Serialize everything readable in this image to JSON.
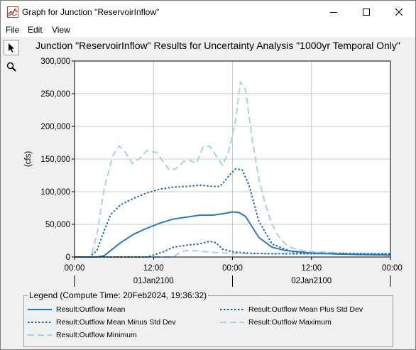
{
  "window": {
    "title": "Graph for Junction \"ReservoirInflow\""
  },
  "menu": {
    "file": "File",
    "edit": "Edit",
    "view": "View"
  },
  "chart_title": "Junction \"ReservoirInflow\" Results for Uncertainty Analysis \"1000yr Temporal Only\"",
  "legend": {
    "title": "Legend (Compute Time: 20Feb2024, 19:36:32)",
    "items": [
      {
        "label": "Result:Outflow Mean",
        "color": "#1f77b4",
        "dash": "solid"
      },
      {
        "label": "Result:Outflow Mean Plus Std Dev",
        "color": "#1f5fa0",
        "dash": "dotted"
      },
      {
        "label": "Result:Outflow Mean Minus Std Dev",
        "color": "#1f5fa0",
        "dash": "dotted"
      },
      {
        "label": "Result:Outflow Maximum",
        "color": "#a6d0e4",
        "dash": "dashed"
      },
      {
        "label": "Result:Outflow Minimum",
        "color": "#a6d0e4",
        "dash": "dashed"
      }
    ]
  },
  "chart_data": {
    "type": "line",
    "title": "Junction \"ReservoirInflow\" Results for Uncertainty Analysis \"1000yr Temporal Only\"",
    "ylabel": "(cfs)",
    "xlabel": "",
    "ylim": [
      0,
      300000
    ],
    "yticks": [
      "0",
      "50,000",
      "100,000",
      "150,000",
      "200,000",
      "250,000",
      "300,000"
    ],
    "xlim": [
      0,
      48
    ],
    "xticks": [
      {
        "x": 0,
        "label": "00:00"
      },
      {
        "x": 12,
        "label": "12:00"
      },
      {
        "x": 24,
        "label": "00:00"
      },
      {
        "x": 36,
        "label": "12:00"
      },
      {
        "x": 48,
        "label": "00:00"
      }
    ],
    "day_labels": [
      {
        "x": 12,
        "label": "01Jan2100"
      },
      {
        "x": 36,
        "label": "02Jan2100"
      }
    ],
    "day_dividers": [
      0,
      24,
      48
    ],
    "grid": true,
    "series": [
      {
        "name": "Result:Outflow Mean",
        "color": "#2a7ab9",
        "width": 2,
        "dash": "",
        "x": [
          0,
          3.4,
          4.5,
          5.5,
          7,
          9,
          11,
          13,
          15,
          17,
          19,
          21,
          23,
          24,
          25,
          26,
          28,
          30,
          32,
          36,
          40,
          44,
          48
        ],
        "y": [
          0,
          0,
          2000,
          10000,
          22000,
          35000,
          44000,
          52000,
          58000,
          61000,
          64000,
          64000,
          67000,
          69000,
          68000,
          62000,
          30000,
          15000,
          10000,
          6000,
          4500,
          3500,
          3000
        ]
      },
      {
        "name": "Result:Outflow Mean Plus Std Dev",
        "color": "#1f66a8",
        "width": 2,
        "dash": "2.5,2.5",
        "x": [
          0,
          2.3,
          3.4,
          4.5,
          5.5,
          7,
          9,
          11,
          13,
          15,
          17,
          19,
          21,
          22,
          22.5,
          23.5,
          24.5,
          25.5,
          26.5,
          28,
          30,
          33,
          36,
          40,
          44,
          48
        ],
        "y": [
          0,
          0,
          10000,
          40000,
          65000,
          80000,
          90000,
          98000,
          104000,
          107000,
          108000,
          110000,
          108000,
          108000,
          112000,
          125000,
          135000,
          133000,
          110000,
          55000,
          20000,
          8000,
          6000,
          5500,
          5000,
          4500
        ]
      },
      {
        "name": "Result:Outflow Mean Minus Std Dev",
        "color": "#1f66a8",
        "width": 2,
        "dash": "2.5,2.5",
        "x": [
          0,
          11,
          12,
          13.5,
          15,
          17,
          19,
          20.5,
          21.5,
          22.5,
          24,
          25,
          27,
          30,
          33,
          36,
          40,
          44,
          48
        ],
        "y": [
          0,
          0,
          3000,
          8000,
          15000,
          18000,
          20000,
          24000,
          22000,
          12000,
          8000,
          7000,
          5500,
          5000,
          5000,
          5000,
          5000,
          5000,
          5000
        ]
      },
      {
        "name": "Result:Outflow Maximum",
        "color": "#a9d1e6",
        "width": 2,
        "dash": "9,5",
        "x": [
          0,
          2.5,
          3.5,
          4.5,
          5.8,
          6.8,
          7.6,
          8.8,
          10,
          11,
          12.5,
          13.5,
          14.5,
          15.5,
          16.5,
          17.5,
          18.5,
          19.5,
          20.5,
          21.5,
          22.5,
          23.5,
          24.5,
          25.2,
          26,
          27,
          28,
          29,
          30,
          31,
          32,
          33,
          35,
          40,
          44,
          48
        ],
        "y": [
          0,
          0,
          40000,
          105000,
          155000,
          170000,
          162000,
          143000,
          152000,
          163000,
          160000,
          145000,
          132000,
          136000,
          146000,
          148000,
          143000,
          168000,
          170000,
          155000,
          140000,
          165000,
          210000,
          268000,
          255000,
          180000,
          120000,
          80000,
          50000,
          32000,
          20000,
          14000,
          9000,
          6500,
          5000,
          4000
        ]
      },
      {
        "name": "Result:Outflow Minimum",
        "color": "#a9d1e6",
        "width": 2,
        "dash": "9,5",
        "x": [
          0,
          15,
          16,
          17,
          19,
          21,
          23,
          24,
          26,
          30,
          36,
          40,
          44,
          48
        ],
        "y": [
          0,
          0,
          7000,
          10000,
          9000,
          7000,
          6000,
          5500,
          5000,
          5000,
          5000,
          5000,
          5000,
          5000
        ]
      }
    ]
  }
}
